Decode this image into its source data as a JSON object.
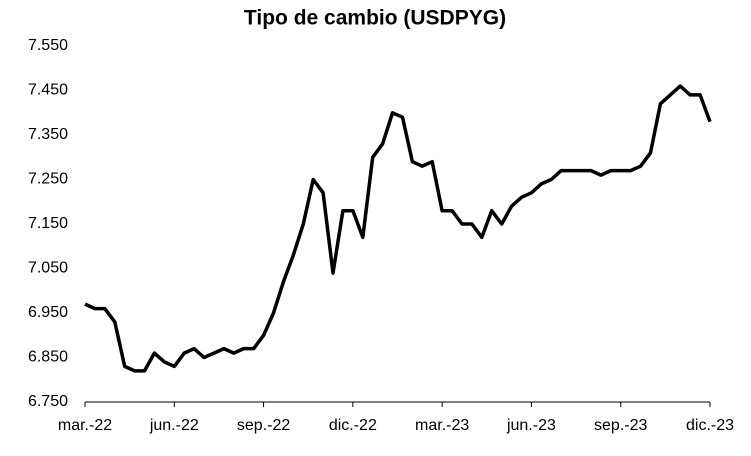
{
  "chart_data": {
    "type": "line",
    "title": "Tipo de cambio (USDPYG)",
    "categories": [
      "mar.-22",
      null,
      null,
      null,
      null,
      null,
      null,
      null,
      null,
      "jun.-22",
      null,
      null,
      null,
      null,
      null,
      null,
      null,
      null,
      "sep.-22",
      null,
      null,
      null,
      null,
      null,
      null,
      null,
      null,
      "dic.-22",
      null,
      null,
      null,
      null,
      null,
      null,
      null,
      null,
      "mar.-23",
      null,
      null,
      null,
      null,
      null,
      null,
      null,
      null,
      "jun.-23",
      null,
      null,
      null,
      null,
      null,
      null,
      null,
      null,
      "sep.-23",
      null,
      null,
      null,
      null,
      null,
      null,
      null,
      null,
      "dic.-23"
    ],
    "values": [
      6970,
      6960,
      6960,
      6930,
      6830,
      6820,
      6820,
      6860,
      6840,
      6830,
      6860,
      6870,
      6850,
      6860,
      6870,
      6860,
      6870,
      6870,
      6900,
      6950,
      7020,
      7080,
      7150,
      7250,
      7220,
      7040,
      7180,
      7180,
      7120,
      7300,
      7330,
      7400,
      7390,
      7290,
      7280,
      7290,
      7180,
      7180,
      7150,
      7150,
      7120,
      7180,
      7150,
      7190,
      7210,
      7220,
      7240,
      7250,
      7270,
      7270,
      7270,
      7270,
      7260,
      7270,
      7270,
      7270,
      7280,
      7310,
      7420,
      7440,
      7460,
      7440,
      7440,
      7380
    ],
    "color": "#000000",
    "ylim": [
      6750,
      7550
    ],
    "yticks": [
      {
        "value": 6750,
        "label": "6.750"
      },
      {
        "value": 6850,
        "label": "6.850"
      },
      {
        "value": 6950,
        "label": "6.950"
      },
      {
        "value": 7050,
        "label": "7.050"
      },
      {
        "value": 7150,
        "label": "7.150"
      },
      {
        "value": 7250,
        "label": "7.250"
      },
      {
        "value": 7350,
        "label": "7.350"
      },
      {
        "value": 7450,
        "label": "7.450"
      },
      {
        "value": 7550,
        "label": "7.550"
      }
    ],
    "grid": false
  }
}
